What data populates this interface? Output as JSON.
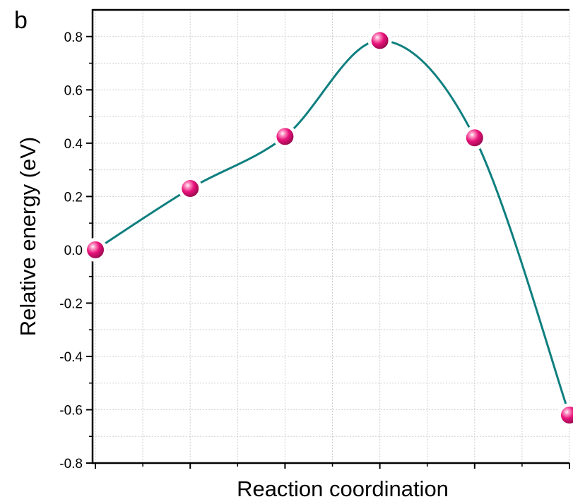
{
  "panel_label": "b",
  "chart_data": {
    "type": "line",
    "title": "",
    "xlabel": "Reaction coordination",
    "ylabel": "Relative energy (eV)",
    "x": [
      0,
      1,
      2,
      3,
      4,
      5
    ],
    "xlim": [
      -0.03,
      5
    ],
    "ylim": [
      -0.8,
      0.9
    ],
    "yticks": [
      -0.8,
      -0.6,
      -0.4,
      -0.2,
      0.0,
      0.2,
      0.4,
      0.6,
      0.8
    ],
    "ytick_labels": [
      "-0.8",
      "-0.6",
      "-0.4",
      "-0.2",
      "0.0",
      "0.2",
      "0.4",
      "0.6",
      "0.8"
    ],
    "grid": true,
    "series": [
      {
        "values": [
          0.0,
          0.23,
          0.425,
          0.785,
          0.42,
          -0.62
        ],
        "line_color": "#0f7f7f",
        "marker_color": "#e8127a",
        "smooth": true
      }
    ]
  }
}
